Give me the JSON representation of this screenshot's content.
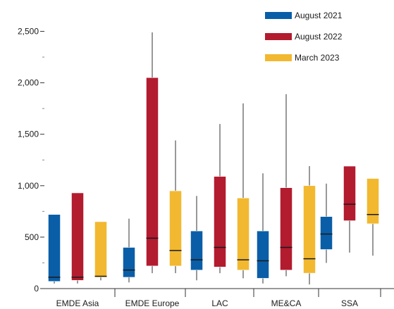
{
  "chart_data": {
    "type": "box",
    "title": "",
    "xlabel": "",
    "ylabel": "",
    "ylim": [
      0,
      2750
    ],
    "yticks": [
      0,
      500,
      1000,
      1500,
      2000,
      2500
    ],
    "ytick_labels": [
      "0",
      "500",
      "1,000",
      "1,500",
      "2,000",
      "2,500"
    ],
    "categories": [
      "EMDE Asia",
      "EMDE Europe",
      "LAC",
      "ME&CA",
      "SSA"
    ],
    "legend_position": "top-right",
    "series": [
      {
        "name": "August 2021",
        "color": "#0a5ea8",
        "boxes": [
          {
            "min": 50,
            "q1": 70,
            "median": 110,
            "q3": 720,
            "max": 720
          },
          {
            "min": 60,
            "q1": 110,
            "median": 180,
            "q3": 400,
            "max": 680
          },
          {
            "min": 80,
            "q1": 180,
            "median": 280,
            "q3": 560,
            "max": 900
          },
          {
            "min": 50,
            "q1": 100,
            "median": 270,
            "q3": 560,
            "max": 1120
          },
          {
            "min": 250,
            "q1": 380,
            "median": 530,
            "q3": 700,
            "max": 1020
          }
        ]
      },
      {
        "name": "August 2022",
        "color": "#b31b2f",
        "boxes": [
          {
            "min": 50,
            "q1": 80,
            "median": 110,
            "q3": 930,
            "max": 930
          },
          {
            "min": 150,
            "q1": 220,
            "median": 490,
            "q3": 2050,
            "max": 2490
          },
          {
            "min": 150,
            "q1": 210,
            "median": 400,
            "q3": 1090,
            "max": 1600
          },
          {
            "min": 120,
            "q1": 180,
            "median": 400,
            "q3": 980,
            "max": 1890
          },
          {
            "min": 350,
            "q1": 660,
            "median": 820,
            "q3": 1190,
            "max": 1190
          }
        ]
      },
      {
        "name": "March 2023",
        "color": "#f2b830",
        "boxes": [
          {
            "min": 80,
            "q1": 110,
            "median": 120,
            "q3": 650,
            "max": 650
          },
          {
            "min": 150,
            "q1": 220,
            "median": 370,
            "q3": 950,
            "max": 1440
          },
          {
            "min": 100,
            "q1": 180,
            "median": 280,
            "q3": 880,
            "max": 1800
          },
          {
            "min": 40,
            "q1": 150,
            "median": 290,
            "q3": 1000,
            "max": 1190
          },
          {
            "min": 320,
            "q1": 630,
            "median": 720,
            "q3": 1070,
            "max": 1070
          }
        ]
      }
    ]
  }
}
